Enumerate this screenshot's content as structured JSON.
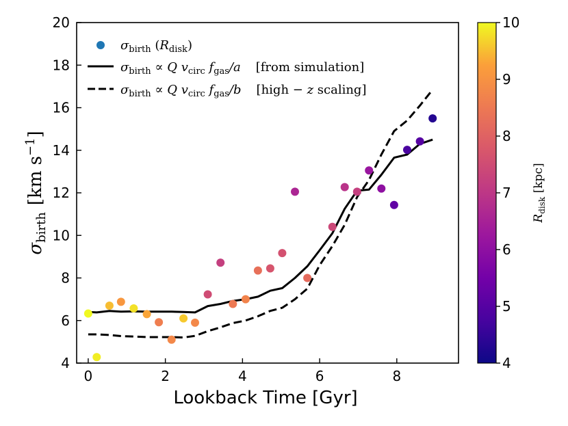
{
  "chart_data": {
    "type": "scatter",
    "xlabel": "Lookback Time [Gyr]",
    "ylabel_symbol": "σ",
    "ylabel_sub": "birth",
    "ylabel_units": "[km s",
    "ylabel_exp": "−1",
    "ylabel_close": "]",
    "xlim": [
      -0.3,
      9.6
    ],
    "ylim": [
      4,
      20
    ],
    "xticks": [
      0,
      2,
      4,
      6,
      8
    ],
    "yticks": [
      4,
      6,
      8,
      10,
      12,
      14,
      16,
      18,
      20
    ],
    "legend_position": "top-left",
    "legend": {
      "scatter": {
        "sym": "σ",
        "sub": "birth",
        "arg_open": " (",
        "arg_sym": "R",
        "arg_sub": "disk",
        "arg_close": ")"
      },
      "solid": {
        "sym": "σ",
        "sub": "birth",
        "rel": " ∝ ",
        "q": "Q",
        "v": " v",
        "vsub": "circ",
        "f": " f",
        "fsub": "gas",
        "div": "/a",
        "note": "[from simulation]"
      },
      "dashed": {
        "sym": "σ",
        "sub": "birth",
        "rel": " ∝ ",
        "q": "Q",
        "v": " v",
        "vsub": "circ",
        "f": " f",
        "fsub": "gas",
        "div": "/b",
        "note_open": "[high − ",
        "note_z": "z",
        "note_close": " scaling]"
      }
    },
    "colorbar": {
      "label_sym": "R",
      "label_sub": "disk",
      "label_units": " [kpc]",
      "range": [
        4,
        10
      ],
      "ticks": [
        4,
        5,
        6,
        7,
        8,
        9,
        10
      ],
      "colormap": "plasma"
    },
    "scatter_points": [
      {
        "x": 0.0,
        "y": 6.33,
        "c": 10.0
      },
      {
        "x": 0.22,
        "y": 4.28,
        "c": 9.9
      },
      {
        "x": 0.55,
        "y": 6.7,
        "c": 9.5
      },
      {
        "x": 0.85,
        "y": 6.88,
        "c": 9.1
      },
      {
        "x": 1.18,
        "y": 6.57,
        "c": 9.8
      },
      {
        "x": 1.52,
        "y": 6.3,
        "c": 9.3
      },
      {
        "x": 1.83,
        "y": 5.92,
        "c": 8.6
      },
      {
        "x": 2.16,
        "y": 5.1,
        "c": 8.8
      },
      {
        "x": 2.47,
        "y": 6.1,
        "c": 9.6
      },
      {
        "x": 2.77,
        "y": 5.9,
        "c": 8.8
      },
      {
        "x": 3.1,
        "y": 7.23,
        "c": 7.5
      },
      {
        "x": 3.43,
        "y": 8.72,
        "c": 7.2
      },
      {
        "x": 3.75,
        "y": 6.78,
        "c": 8.5
      },
      {
        "x": 4.08,
        "y": 7.0,
        "c": 8.7
      },
      {
        "x": 4.4,
        "y": 8.35,
        "c": 8.3
      },
      {
        "x": 4.72,
        "y": 8.45,
        "c": 7.7
      },
      {
        "x": 5.03,
        "y": 9.17,
        "c": 7.6
      },
      {
        "x": 5.36,
        "y": 12.05,
        "c": 6.6
      },
      {
        "x": 5.68,
        "y": 8.0,
        "c": 8.2
      },
      {
        "x": 6.33,
        "y": 10.4,
        "c": 7.4
      },
      {
        "x": 6.65,
        "y": 12.27,
        "c": 6.9
      },
      {
        "x": 6.97,
        "y": 12.05,
        "c": 7.2
      },
      {
        "x": 7.28,
        "y": 13.05,
        "c": 6.2
      },
      {
        "x": 7.6,
        "y": 12.2,
        "c": 6.0
      },
      {
        "x": 7.93,
        "y": 11.43,
        "c": 5.2
      },
      {
        "x": 8.27,
        "y": 14.02,
        "c": 4.8
      },
      {
        "x": 8.6,
        "y": 14.42,
        "c": 5.0
      },
      {
        "x": 8.93,
        "y": 15.5,
        "c": 4.3
      }
    ],
    "series": [
      {
        "name": "from simulation",
        "style": "solid",
        "x": [
          0.0,
          0.22,
          0.55,
          0.85,
          1.18,
          1.52,
          1.83,
          2.16,
          2.47,
          2.77,
          3.1,
          3.43,
          3.75,
          4.08,
          4.4,
          4.72,
          5.03,
          5.36,
          5.68,
          6.0,
          6.33,
          6.65,
          6.97,
          7.28,
          7.6,
          7.93,
          8.27,
          8.6,
          8.93
        ],
        "y": [
          6.4,
          6.38,
          6.45,
          6.42,
          6.43,
          6.42,
          6.42,
          6.42,
          6.4,
          6.38,
          6.68,
          6.78,
          6.92,
          7.0,
          7.12,
          7.4,
          7.52,
          8.0,
          8.55,
          9.3,
          10.1,
          11.25,
          12.1,
          12.15,
          12.85,
          13.65,
          13.8,
          14.3,
          14.5
        ]
      },
      {
        "name": "high-z scaling",
        "style": "dashed",
        "x": [
          0.0,
          0.22,
          0.55,
          0.85,
          1.18,
          1.52,
          1.83,
          2.16,
          2.47,
          2.77,
          3.1,
          3.43,
          3.75,
          4.08,
          4.4,
          4.72,
          5.03,
          5.36,
          5.68,
          6.0,
          6.33,
          6.65,
          6.97,
          7.28,
          7.6,
          7.93,
          8.27,
          8.6,
          8.93
        ],
        "y": [
          5.35,
          5.35,
          5.32,
          5.27,
          5.25,
          5.22,
          5.22,
          5.22,
          5.2,
          5.28,
          5.5,
          5.68,
          5.88,
          6.0,
          6.2,
          6.45,
          6.6,
          7.0,
          7.5,
          8.6,
          9.5,
          10.5,
          11.8,
          12.6,
          13.8,
          14.9,
          15.4,
          16.1,
          16.85
        ]
      }
    ]
  }
}
